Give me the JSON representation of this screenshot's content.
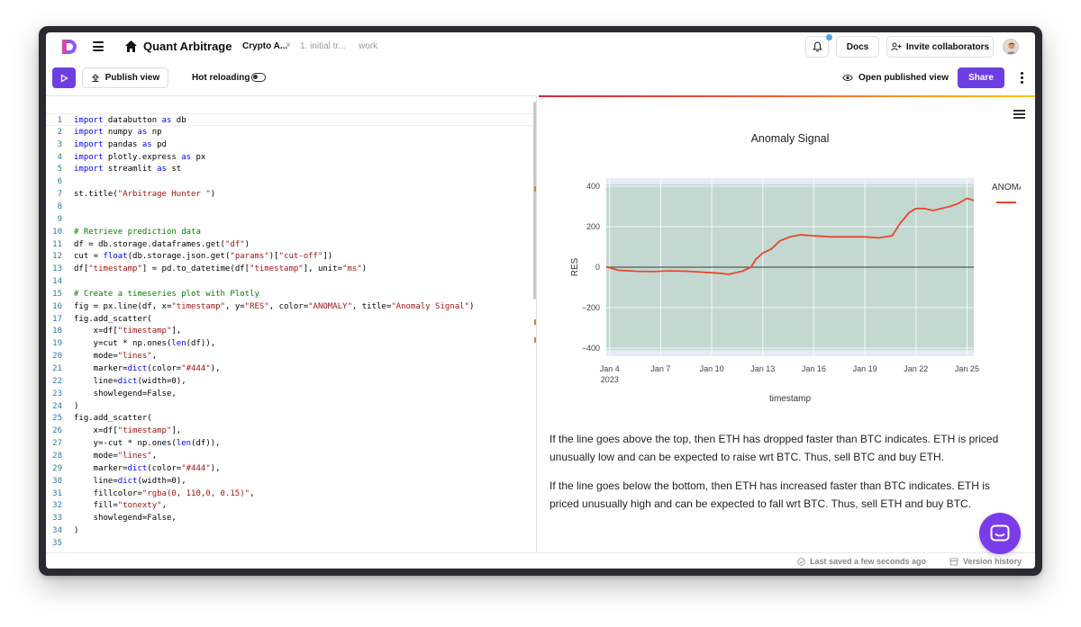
{
  "header": {
    "app_title": "Quant Arbitrage",
    "tabs": [
      {
        "label": "Crypto A...",
        "active": true
      },
      {
        "label": "1. initial tr...",
        "active": false
      },
      {
        "label": "work",
        "active": false
      }
    ],
    "docs_label": "Docs",
    "invite_label": "Invite collaborators",
    "notification_dot_color": "#4aa3f0"
  },
  "toolbar": {
    "publish_label": "Publish view",
    "hot_reload_label": "Hot reloading",
    "hot_reload_on": false,
    "open_published_label": "Open published view",
    "share_label": "Share",
    "accent": "#6d3fe0"
  },
  "editor": {
    "current_line": 1,
    "lines": [
      "import databutton as db",
      "import numpy as np",
      "import pandas as pd",
      "import plotly.express as px",
      "import streamlit as st",
      "",
      "st.title(\"Arbitrage Hunter \")",
      "",
      "",
      "# Retrieve prediction data",
      "df = db.storage.dataframes.get(\"df\")",
      "cut = float(db.storage.json.get(\"params\")[\"cut-off\"])",
      "df[\"timestamp\"] = pd.to_datetime(df[\"timestamp\"], unit=\"ms\")",
      "",
      "# Create a timeseries plot with Plotly",
      "fig = px.line(df, x=\"timestamp\", y=\"RES\", color=\"ANOMALY\", title=\"Anomaly Signal\")",
      "fig.add_scatter(",
      "    x=df[\"timestamp\"],",
      "    y=cut * np.ones(len(df)),",
      "    mode=\"lines\",",
      "    marker=dict(color=\"#444\"),",
      "    line=dict(width=0),",
      "    showlegend=False,",
      ")",
      "fig.add_scatter(",
      "    x=df[\"timestamp\"],",
      "    y=-cut * np.ones(len(df)),",
      "    mode=\"lines\",",
      "    marker=dict(color=\"#444\"),",
      "    line=dict(width=0),",
      "    fillcolor=\"rgba(0, 110,0, 0.15)\",",
      "    fill=\"tonexty\",",
      "    showlegend=False,",
      ")",
      ""
    ]
  },
  "preview": {
    "paragraphs": [
      "If the line goes above the top, then ETH has dropped faster than BTC indicates. ETH is priced unusually low and can be expected to raise wrt BTC. Thus, sell BTC and buy ETH.",
      "If the line goes below the bottom, then ETH has increased faster than BTC indicates. ETH is priced unusually high and can be expected to fall wrt BTC. Thus, sell ETH and buy BTC."
    ]
  },
  "status": {
    "saved_label": "Last saved a few seconds ago",
    "history_label": "Version history"
  },
  "chart_data": {
    "type": "line",
    "title": "Anomaly Signal",
    "xlabel": "timestamp",
    "ylabel": "RES",
    "x_ticks": [
      "Jan 4\n2023",
      "Jan 7",
      "Jan 10",
      "Jan 13",
      "Jan 16",
      "Jan 19",
      "Jan 22",
      "Jan 25"
    ],
    "x_range_days": [
      3.8,
      25.4
    ],
    "ylim": [
      -440,
      440
    ],
    "y_ticks": [
      400,
      200,
      0,
      -200,
      -400
    ],
    "band": {
      "upper": 410,
      "lower": -410,
      "fill": "rgba(0,110,0,0.15)"
    },
    "legend_title": "ANOMALY",
    "legend_position": "top-right",
    "series": [
      {
        "name": "False",
        "color": "#e8472b",
        "x": [
          3.8,
          4.5,
          5.5,
          6.5,
          7.5,
          8.5,
          9.5,
          10.5,
          11.0,
          11.8,
          12.3,
          12.6,
          13.0,
          13.5,
          14.0,
          14.6,
          15.2,
          16.0,
          17.0,
          18.0,
          19.0,
          19.8,
          20.6,
          21.1,
          21.3,
          21.6,
          22.0,
          22.5,
          23.0,
          23.5,
          24.0,
          24.5,
          25.0,
          25.4
        ],
        "y": [
          2,
          -15,
          -20,
          -22,
          -18,
          -20,
          -25,
          -30,
          -35,
          -20,
          0,
          40,
          70,
          90,
          130,
          150,
          160,
          155,
          150,
          150,
          150,
          145,
          155,
          220,
          240,
          270,
          290,
          290,
          280,
          290,
          300,
          315,
          340,
          330
        ]
      }
    ]
  }
}
